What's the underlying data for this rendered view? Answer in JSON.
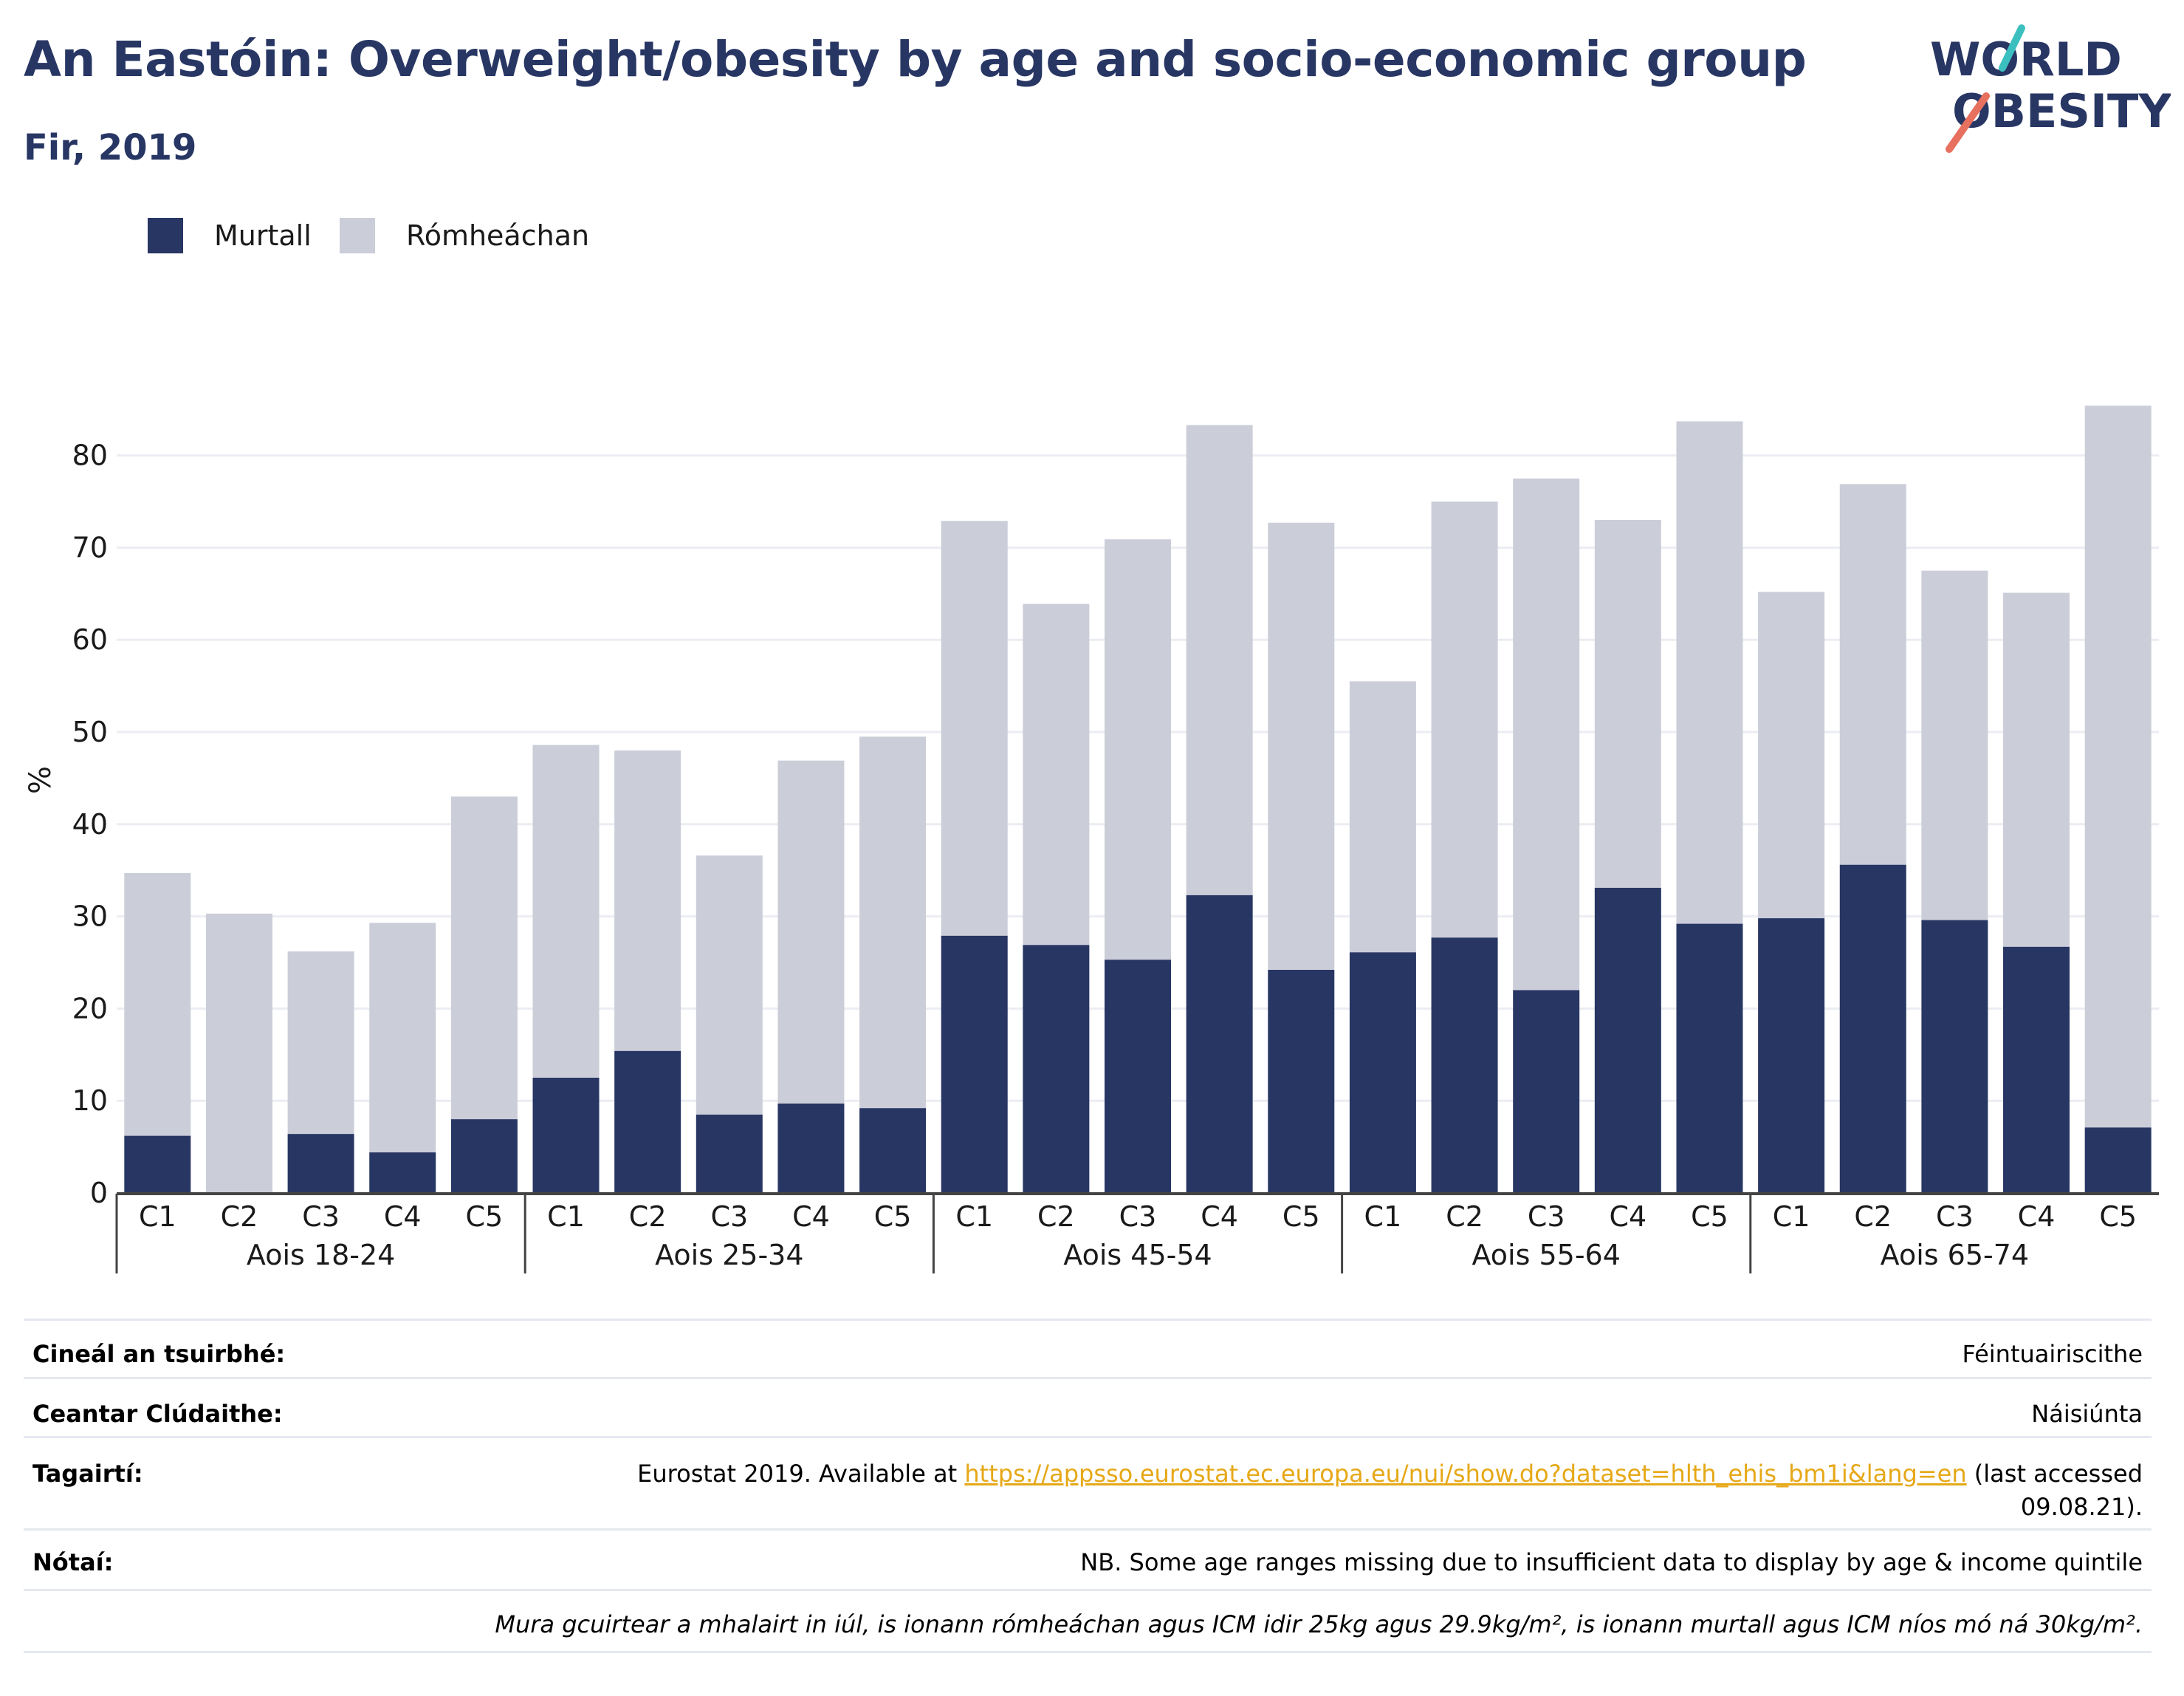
{
  "header": {
    "title": "An Eastóin: Overweight/obesity by age and socio-economic group",
    "subtitle": "Fir, 2019"
  },
  "logo": {
    "line1": "WORLD",
    "line2": "OBESITY"
  },
  "colors": {
    "obese": "#283664",
    "overweight": "#cbcdd9",
    "title": "#283664",
    "link": "#e6a817",
    "logo_teal": "#3cbfbf",
    "logo_coral": "#e8705f"
  },
  "chart_data": {
    "type": "bar",
    "stacked": true,
    "ylabel": "%",
    "ylim": [
      0,
      86
    ],
    "yticks": [
      0,
      10,
      20,
      30,
      40,
      50,
      60,
      70,
      80
    ],
    "grid": true,
    "legend_position": "top-left",
    "groups": [
      {
        "label": "Aois 18-24",
        "categories": [
          "C1",
          "C2",
          "C3",
          "C4",
          "C5"
        ]
      },
      {
        "label": "Aois 25-34",
        "categories": [
          "C1",
          "C2",
          "C3",
          "C4",
          "C5"
        ]
      },
      {
        "label": "Aois 45-54",
        "categories": [
          "C1",
          "C2",
          "C3",
          "C4",
          "C5"
        ]
      },
      {
        "label": "Aois 55-64",
        "categories": [
          "C1",
          "C2",
          "C3",
          "C4",
          "C5"
        ]
      },
      {
        "label": "Aois 65-74",
        "categories": [
          "C1",
          "C2",
          "C3",
          "C4",
          "C5"
        ]
      }
    ],
    "series": [
      {
        "name": "Murtall",
        "color": "#283664",
        "values": [
          6.2,
          0.0,
          6.4,
          4.4,
          8.0,
          12.5,
          15.4,
          8.5,
          9.7,
          9.2,
          27.9,
          26.9,
          25.3,
          32.3,
          24.2,
          26.1,
          27.7,
          22.0,
          33.1,
          29.2,
          29.8,
          35.6,
          29.6,
          26.7,
          7.1
        ]
      },
      {
        "name": "Rómheáchan",
        "color": "#cbcdd9",
        "values": [
          28.5,
          30.3,
          19.8,
          24.9,
          35.0,
          36.1,
          32.6,
          28.1,
          37.2,
          40.3,
          45.0,
          37.0,
          45.6,
          51.0,
          48.5,
          29.4,
          47.3,
          55.5,
          39.9,
          54.5,
          35.4,
          41.3,
          37.9,
          38.4,
          78.3
        ]
      }
    ]
  },
  "info": {
    "survey_type_label": "Cineál an tsuirbhé:",
    "survey_type_value": "Féintuairiscithe",
    "area_label": "Ceantar Clúdaithe:",
    "area_value": "Náisiúnta",
    "references_label": "Tagairtí:",
    "references_prefix": "Eurostat 2019. Available at ",
    "references_link": "https://appsso.eurostat.ec.europa.eu/nui/show.do?dataset=hlth_ehis_bm1i&lang=en",
    "references_suffix": " (last accessed",
    "references_date": "09.08.21).",
    "notes_label": "Nótaí:",
    "notes_value": "NB. Some age ranges missing due to insufficient data to display by age & income quintile",
    "footnote": "Mura gcuirtear a mhalairt in iúl, is ionann rómheáchan agus ICM idir 25kg agus 29.9kg/m², is ionann murtall agus ICM níos mó ná 30kg/m²."
  }
}
